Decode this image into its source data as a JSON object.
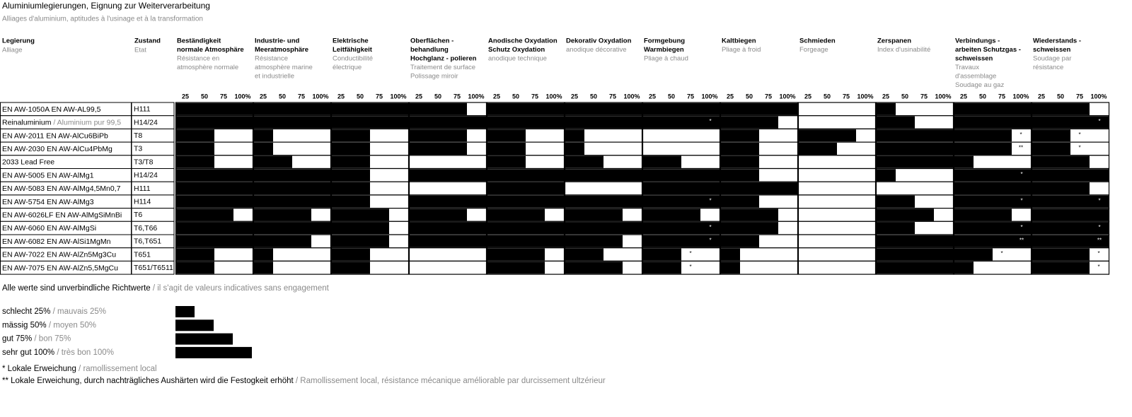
{
  "chart_data": {
    "type": "bar-matrix",
    "title": "Aluminiumlegierungen, Eignung zur Weiterverarbeitung",
    "subtitle": "Alliages d'aluminium, aptitudes à l'usinage et à la transformation",
    "separator": " / ",
    "alloy_header": {
      "de": "Legierung",
      "fr": "Alliage"
    },
    "state_header": {
      "de": "Zustand",
      "fr": "Etat"
    },
    "columns": [
      {
        "de": [
          "Beständigkeit",
          "normale Atmosphäre"
        ],
        "fr": [
          "Résistance en",
          "atmosphère normale"
        ]
      },
      {
        "de": [
          "Industrie- und",
          "Meeratmosphäre"
        ],
        "fr": [
          "Résistance",
          "atmosphère marine",
          "et industrielle"
        ]
      },
      {
        "de": [
          "Elektrische",
          "Leitfähigkeit"
        ],
        "fr": [
          "Conductibilité",
          "électrique"
        ]
      },
      {
        "de": [
          "Oberflächen -",
          "behandlung",
          "Hochglanz - polieren"
        ],
        "fr": [
          "Traitement de surface",
          "Polissage miroir"
        ]
      },
      {
        "de": [
          "Anodische Oxydation",
          "Schutz Oxydation"
        ],
        "fr": [
          "anodique technique"
        ]
      },
      {
        "de": [
          "Dekorativ Oxydation"
        ],
        "fr": [
          "anodique décorative"
        ]
      },
      {
        "de": [
          "Formgebung",
          "Warmbiegen"
        ],
        "fr": [
          "Pliage à chaud"
        ]
      },
      {
        "de": [
          "Kaltbiegen"
        ],
        "fr": [
          "Pliage à froid"
        ]
      },
      {
        "de": [
          "Schmieden"
        ],
        "fr": [
          "Forgeage"
        ]
      },
      {
        "de": [
          "Zerspanen"
        ],
        "fr": [
          "Index d'usinabilité"
        ]
      },
      {
        "de": [
          "Verbindungs -",
          "arbeiten Schutzgas -",
          "schweissen"
        ],
        "fr": [
          "Travaux",
          "d'assemblage",
          "Soudage au gaz"
        ]
      },
      {
        "de": [
          "Wiederstands -",
          "schweissen"
        ],
        "fr": [
          "Soudage par",
          "résistance"
        ]
      }
    ],
    "xlim": [
      0,
      100
    ],
    "xticks": [
      25,
      50,
      75,
      {
        "value": 100,
        "label": "100%"
      }
    ],
    "color": "#000000",
    "rows": [
      {
        "alloy": "EN AW-1050A EN AW-AL99,5",
        "state": "H111",
        "values": [
          100,
          100,
          100,
          75,
          100,
          100,
          100,
          100,
          0,
          25,
          100,
          75
        ],
        "notes": [
          null,
          null,
          null,
          null,
          null,
          null,
          null,
          null,
          null,
          null,
          null,
          null
        ]
      },
      {
        "alloy": "Reinaluminium",
        "alloy_fr": "Aluminium pur 99,5",
        "state": "H14/24",
        "values": [
          100,
          100,
          100,
          100,
          100,
          100,
          100,
          75,
          0,
          50,
          100,
          100
        ],
        "notes": [
          null,
          null,
          null,
          null,
          null,
          null,
          "*",
          null,
          null,
          null,
          null,
          "*"
        ]
      },
      {
        "alloy": "EN AW-2011 EN AW-AlCu6BiPb",
        "state": "T8",
        "values": [
          50,
          25,
          50,
          75,
          50,
          25,
          0,
          50,
          75,
          100,
          75,
          50
        ],
        "notes": [
          null,
          null,
          null,
          null,
          null,
          null,
          null,
          null,
          null,
          null,
          "*",
          "*"
        ]
      },
      {
        "alloy": "EN AW-2030 EN AW-AlCu4PbMg",
        "state": "T3",
        "values": [
          50,
          25,
          50,
          75,
          50,
          25,
          0,
          50,
          50,
          100,
          75,
          50
        ],
        "notes": [
          null,
          null,
          null,
          null,
          null,
          null,
          null,
          null,
          null,
          null,
          "**",
          "*"
        ]
      },
      {
        "alloy": "2033 Lead Free",
        "state": "T3/T8",
        "values": [
          50,
          50,
          50,
          0,
          50,
          50,
          50,
          50,
          0,
          100,
          25,
          75
        ],
        "notes": [
          null,
          null,
          null,
          null,
          null,
          null,
          null,
          null,
          null,
          null,
          null,
          null
        ]
      },
      {
        "alloy": "EN AW-5005 EN AW-AlMg1",
        "state": "H14/24",
        "values": [
          100,
          100,
          50,
          100,
          100,
          100,
          100,
          50,
          0,
          25,
          100,
          100
        ],
        "notes": [
          null,
          null,
          null,
          null,
          null,
          null,
          null,
          null,
          null,
          null,
          "*",
          null
        ]
      },
      {
        "alloy": "EN AW-5083 EN AW-AlMg4,5Mn0,7",
        "state": "H111",
        "values": [
          100,
          100,
          50,
          0,
          100,
          0,
          100,
          100,
          0,
          0,
          100,
          75
        ],
        "notes": [
          null,
          null,
          null,
          null,
          null,
          null,
          null,
          null,
          null,
          null,
          null,
          null
        ]
      },
      {
        "alloy": "EN AW-5754 EN AW-AlMg3",
        "state": "H114",
        "values": [
          100,
          100,
          50,
          100,
          100,
          100,
          100,
          50,
          0,
          50,
          100,
          100
        ],
        "notes": [
          null,
          null,
          null,
          null,
          null,
          null,
          "*",
          null,
          null,
          null,
          "*",
          "*"
        ]
      },
      {
        "alloy": "EN AW-6026LF EN AW-AlMgSiMnBi",
        "state": "T6",
        "values": [
          75,
          75,
          75,
          75,
          75,
          75,
          75,
          75,
          0,
          75,
          75,
          100
        ],
        "notes": [
          null,
          null,
          null,
          null,
          null,
          null,
          null,
          null,
          null,
          null,
          null,
          null
        ]
      },
      {
        "alloy": "EN AW-6060 EN AW-AlMgSi",
        "state": "T6,T66",
        "values": [
          100,
          100,
          75,
          100,
          100,
          100,
          100,
          75,
          0,
          50,
          100,
          100
        ],
        "notes": [
          null,
          null,
          null,
          null,
          null,
          null,
          "*",
          null,
          null,
          null,
          "*",
          "*"
        ]
      },
      {
        "alloy": "EN AW-6082 EN AW-AlSi1MgMn",
        "state": "T6,T651",
        "values": [
          100,
          75,
          75,
          100,
          100,
          75,
          100,
          50,
          0,
          100,
          100,
          100
        ],
        "notes": [
          null,
          null,
          null,
          null,
          null,
          null,
          "*",
          null,
          null,
          null,
          "**",
          "**"
        ]
      },
      {
        "alloy": "EN AW-7022 EN AW-AlZn5Mg3Cu",
        "state": "T651",
        "values": [
          50,
          25,
          50,
          0,
          75,
          50,
          50,
          25,
          0,
          100,
          50,
          75
        ],
        "notes": [
          null,
          null,
          null,
          null,
          null,
          null,
          "*",
          null,
          null,
          null,
          "*",
          "*"
        ]
      },
      {
        "alloy": "EN AW-7075 EN AW-AlZn5,5MgCu",
        "state": "T651/T6511",
        "values": [
          50,
          25,
          50,
          0,
          75,
          75,
          50,
          25,
          0,
          100,
          25,
          75
        ],
        "notes": [
          null,
          null,
          null,
          null,
          null,
          null,
          "*",
          null,
          null,
          null,
          null,
          "*"
        ]
      }
    ],
    "disclaimer": {
      "de": "Alle werte sind unverbindliche Richtwerte",
      "fr": "il s'agit de valeurs indicatives sans engagement"
    },
    "legend": [
      {
        "de": "schlecht 25%",
        "fr": "mauvais 25%",
        "value": 25
      },
      {
        "de": "mässig 50%",
        "fr": "moyen 50%",
        "value": 50
      },
      {
        "de": "gut 75%",
        "fr": "bon 75%",
        "value": 75
      },
      {
        "de": "sehr gut 100%",
        "fr": "très bon 100%",
        "value": 100
      }
    ],
    "footnotes": [
      {
        "de": "* Lokale Erweichung",
        "fr": "ramollissement local"
      },
      {
        "de": "** Lokale Erweichung, durch nachträgliches Aushärten wird die Festogkeit erhöht",
        "fr": "Ramollissement local, résistance mécanique améliorable par durcissement ultzérieur"
      }
    ]
  }
}
